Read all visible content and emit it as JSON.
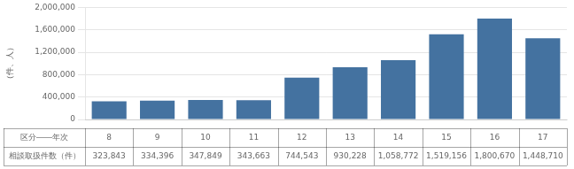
{
  "chart_data": {
    "type": "bar",
    "ylabel": "（件、人）",
    "xlabel": "区分――年次",
    "categories": [
      "8",
      "9",
      "10",
      "11",
      "12",
      "13",
      "14",
      "15",
      "16",
      "17"
    ],
    "series": [
      {
        "name": "相談取扱件数（件）",
        "color": "#4472a0",
        "values": [
          323843,
          334396,
          347849,
          343663,
          744543,
          930228,
          1058772,
          1519156,
          1800670,
          1448710
        ],
        "value_labels": [
          "323,843",
          "334,396",
          "347,849",
          "343,663",
          "744,543",
          "930,228",
          "1,058,772",
          "1,519,156",
          "1,800,670",
          "1,448,710"
        ]
      }
    ],
    "ylim": [
      0,
      2000000
    ],
    "yticks": [
      0,
      {
        "value": 400000,
        "label": "400,000"
      },
      {
        "value": 800000,
        "label": "800,000"
      },
      {
        "value": 1200000,
        "label": "1,200,000"
      },
      {
        "value": 1600000,
        "label": "1,600,000"
      },
      {
        "value": 2000000,
        "label": "2,000,000"
      }
    ],
    "grid": true
  }
}
